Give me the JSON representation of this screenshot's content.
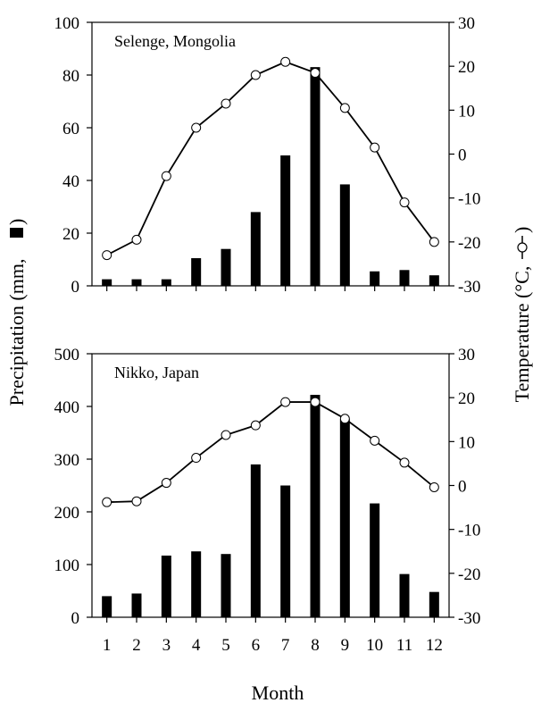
{
  "figure": {
    "ylabel_left": "Precipitation  (mm,",
    "ylabel_right": "Temperature (°C,",
    "xlabel": "Month"
  },
  "chart_data": [
    {
      "type": "bar+line",
      "title": "Selenge, Mongolia",
      "categories": [
        1,
        2,
        3,
        4,
        5,
        6,
        7,
        8,
        9,
        10,
        11,
        12
      ],
      "precip_ylim": [
        0,
        100
      ],
      "precip_ticks": [
        0,
        20,
        40,
        60,
        80,
        100
      ],
      "temp_ylim": [
        -30,
        30
      ],
      "temp_ticks": [
        -30,
        -20,
        -10,
        0,
        10,
        20,
        30
      ],
      "series": [
        {
          "values": [
            2.5,
            2.5,
            2.5,
            10.5,
            14,
            28,
            49.5,
            83,
            38.5,
            5.5,
            6,
            4
          ]
        },
        {
          "values": [
            -23,
            -19.5,
            -5,
            6,
            11.5,
            18,
            21,
            18.5,
            10.5,
            1.5,
            -11,
            -20
          ]
        }
      ]
    },
    {
      "type": "bar+line",
      "title": "Nikko, Japan",
      "categories": [
        1,
        2,
        3,
        4,
        5,
        6,
        7,
        8,
        9,
        10,
        11,
        12
      ],
      "precip_ylim": [
        0,
        500
      ],
      "precip_ticks": [
        0,
        100,
        200,
        300,
        400,
        500
      ],
      "temp_ylim": [
        -30,
        30
      ],
      "temp_ticks": [
        -30,
        -20,
        -10,
        0,
        10,
        20,
        30
      ],
      "series": [
        {
          "values": [
            40,
            45,
            117,
            125,
            120,
            290,
            250,
            422,
            376,
            216,
            82,
            48
          ]
        },
        {
          "values": [
            -3.8,
            -3.6,
            0.6,
            6.3,
            11.5,
            13.7,
            19,
            19,
            15.2,
            10.2,
            5.2,
            -0.4
          ]
        }
      ]
    }
  ]
}
